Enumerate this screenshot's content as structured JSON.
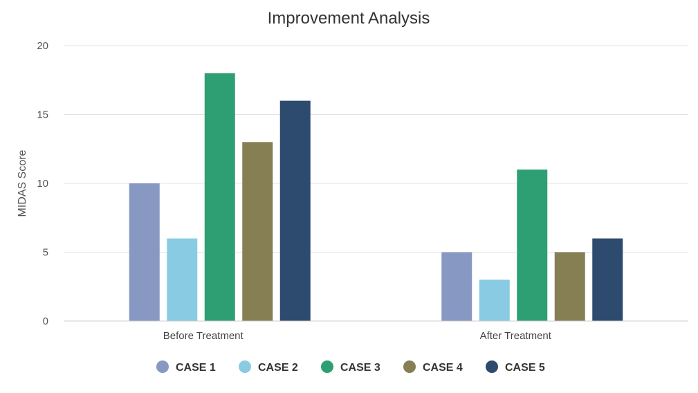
{
  "chart_data": {
    "type": "bar",
    "title": "Improvement Analysis",
    "xlabel": "",
    "ylabel": "MIDAS Score",
    "ylim": [
      0,
      20
    ],
    "yticks": [
      0,
      5,
      10,
      15,
      20
    ],
    "grid": true,
    "legend_position": "bottom",
    "categories": [
      "Before Treatment",
      "After Treatment"
    ],
    "series": [
      {
        "name": "CASE 1",
        "color": "#8799c3",
        "values": [
          10,
          5
        ]
      },
      {
        "name": "CASE 2",
        "color": "#89cbe2",
        "values": [
          6,
          3
        ]
      },
      {
        "name": "CASE 3",
        "color": "#2e9f72",
        "values": [
          18,
          11
        ]
      },
      {
        "name": "CASE 4",
        "color": "#857f53",
        "values": [
          13,
          5
        ]
      },
      {
        "name": "CASE 5",
        "color": "#2d4b6e",
        "values": [
          16,
          6
        ]
      }
    ]
  }
}
